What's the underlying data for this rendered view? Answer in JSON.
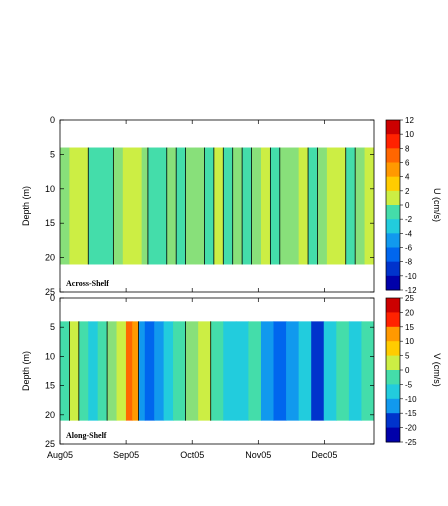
{
  "chart_data": [
    {
      "type": "heatmap",
      "panel_label": "Across-Shelf",
      "ylabel": "Depth (m)",
      "ylim": [
        25,
        0
      ],
      "yticks": [
        0,
        5,
        10,
        15,
        20,
        25
      ],
      "xticks": [
        "Aug05",
        "Sep05",
        "Oct05",
        "Nov05",
        "Dec05"
      ],
      "colorbar": {
        "label": "U (cm/s)",
        "ticks": [
          12,
          10,
          8,
          6,
          4,
          2,
          0,
          -2,
          -4,
          -6,
          -8,
          -10,
          -12
        ],
        "range": [
          -12,
          12
        ]
      },
      "data_depth_range": [
        4,
        21
      ],
      "columns": [
        {
          "t": 0.0,
          "u": 0
        },
        {
          "t": 0.03,
          "u": 1
        },
        {
          "t": 0.06,
          "u": 1
        },
        {
          "t": 0.09,
          "u": -1
        },
        {
          "t": 0.11,
          "u": -2
        },
        {
          "t": 0.14,
          "u": -1
        },
        {
          "t": 0.17,
          "u": 0
        },
        {
          "t": 0.2,
          "u": 1
        },
        {
          "t": 0.23,
          "u": 2
        },
        {
          "t": 0.26,
          "u": 0
        },
        {
          "t": 0.28,
          "u": -1
        },
        {
          "t": 0.31,
          "u": -1
        },
        {
          "t": 0.34,
          "u": 0
        },
        {
          "t": 0.37,
          "u": -1
        },
        {
          "t": 0.4,
          "u": 0
        },
        {
          "t": 0.43,
          "u": 0
        },
        {
          "t": 0.46,
          "u": -1
        },
        {
          "t": 0.49,
          "u": 1
        },
        {
          "t": 0.52,
          "u": -1
        },
        {
          "t": 0.55,
          "u": 0
        },
        {
          "t": 0.58,
          "u": -1
        },
        {
          "t": 0.61,
          "u": 0
        },
        {
          "t": 0.64,
          "u": 1
        },
        {
          "t": 0.67,
          "u": -1
        },
        {
          "t": 0.7,
          "u": 0
        },
        {
          "t": 0.73,
          "u": 0
        },
        {
          "t": 0.76,
          "u": 1
        },
        {
          "t": 0.79,
          "u": -1
        },
        {
          "t": 0.82,
          "u": 0
        },
        {
          "t": 0.85,
          "u": 2
        },
        {
          "t": 0.88,
          "u": 1
        },
        {
          "t": 0.91,
          "u": -1
        },
        {
          "t": 0.94,
          "u": 0
        },
        {
          "t": 0.97,
          "u": 1
        }
      ]
    },
    {
      "type": "heatmap",
      "panel_label": "Along-Shelf",
      "ylabel": "Depth (m)",
      "ylim": [
        25,
        0
      ],
      "yticks": [
        0,
        5,
        10,
        15,
        20,
        25
      ],
      "xticks": [
        "Aug05",
        "Sep05",
        "Oct05",
        "Nov05",
        "Dec05"
      ],
      "colorbar": {
        "label": "V (cm/s)",
        "ticks": [
          25,
          20,
          15,
          10,
          5,
          0,
          -5,
          -10,
          -15,
          -20,
          -25
        ],
        "range": [
          -25,
          25
        ]
      },
      "data_depth_range": [
        4,
        21
      ],
      "columns": [
        {
          "t": 0.0,
          "v": -2
        },
        {
          "t": 0.03,
          "v": 2
        },
        {
          "t": 0.06,
          "v": -4
        },
        {
          "t": 0.09,
          "v": -8
        },
        {
          "t": 0.12,
          "v": -3
        },
        {
          "t": 0.15,
          "v": 0
        },
        {
          "t": 0.18,
          "v": 5
        },
        {
          "t": 0.21,
          "v": 14
        },
        {
          "t": 0.23,
          "v": 10
        },
        {
          "t": 0.25,
          "v": -10
        },
        {
          "t": 0.27,
          "v": -17
        },
        {
          "t": 0.3,
          "v": -12
        },
        {
          "t": 0.33,
          "v": -6
        },
        {
          "t": 0.36,
          "v": -2
        },
        {
          "t": 0.4,
          "v": 1
        },
        {
          "t": 0.44,
          "v": 2
        },
        {
          "t": 0.48,
          "v": -2
        },
        {
          "t": 0.52,
          "v": -6
        },
        {
          "t": 0.56,
          "v": -8
        },
        {
          "t": 0.6,
          "v": -5
        },
        {
          "t": 0.64,
          "v": -12
        },
        {
          "t": 0.68,
          "v": -14
        },
        {
          "t": 0.72,
          "v": -13
        },
        {
          "t": 0.76,
          "v": -9
        },
        {
          "t": 0.8,
          "v": -18
        },
        {
          "t": 0.84,
          "v": -8
        },
        {
          "t": 0.88,
          "v": -4
        },
        {
          "t": 0.92,
          "v": -9
        },
        {
          "t": 0.96,
          "v": -3
        }
      ]
    }
  ]
}
